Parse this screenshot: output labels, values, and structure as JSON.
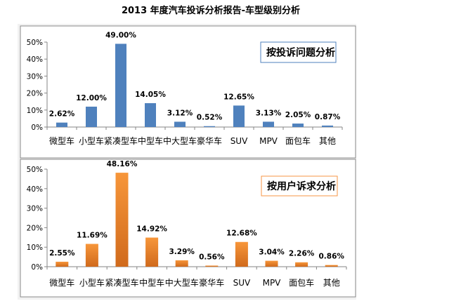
{
  "title": "2013 年度汽车投诉分析报告-车型级别分析",
  "chart_data": [
    {
      "type": "bar",
      "title": "按投诉问题分析",
      "categories": [
        "微型车",
        "小型车",
        "紧凑型车",
        "中型车",
        "中大型车",
        "豪华车",
        "SUV",
        "MPV",
        "面包车",
        "其他"
      ],
      "values": [
        2.62,
        12.0,
        49.0,
        14.05,
        3.12,
        0.52,
        12.65,
        3.13,
        2.05,
        0.87
      ],
      "data_labels": [
        "2.62%",
        "12.00%",
        "49.00%",
        "14.05%",
        "3.12%",
        "0.52%",
        "12.65%",
        "3.13%",
        "2.05%",
        "0.87%"
      ],
      "y_ticks": [
        "0%",
        "10%",
        "20%",
        "30%",
        "40%",
        "50%"
      ],
      "ylim": [
        0,
        50
      ],
      "grid": false,
      "legend": "none",
      "bar_color": "#4F81BD",
      "title_box_border": "#4F81BD"
    },
    {
      "type": "bar",
      "title": "按用户诉求分析",
      "categories": [
        "微型车",
        "小型车",
        "紧凑型车",
        "中型车",
        "中大型车",
        "豪华车",
        "SUV",
        "MPV",
        "面包车",
        "其他"
      ],
      "values": [
        2.55,
        11.69,
        48.16,
        14.92,
        3.29,
        0.56,
        12.68,
        3.04,
        2.26,
        0.86
      ],
      "data_labels": [
        "2.55%",
        "11.69%",
        "48.16%",
        "14.92%",
        "3.29%",
        "0.56%",
        "12.68%",
        "3.04%",
        "2.26%",
        "0.86%"
      ],
      "y_ticks": [
        "0%",
        "10%",
        "20%",
        "30%",
        "40%",
        "50%"
      ],
      "ylim": [
        0,
        50
      ],
      "grid": false,
      "legend": "none",
      "bar_color": "#F79646",
      "bar_gradient_end": "#D06A1C",
      "title_box_border": "#F79646"
    }
  ]
}
